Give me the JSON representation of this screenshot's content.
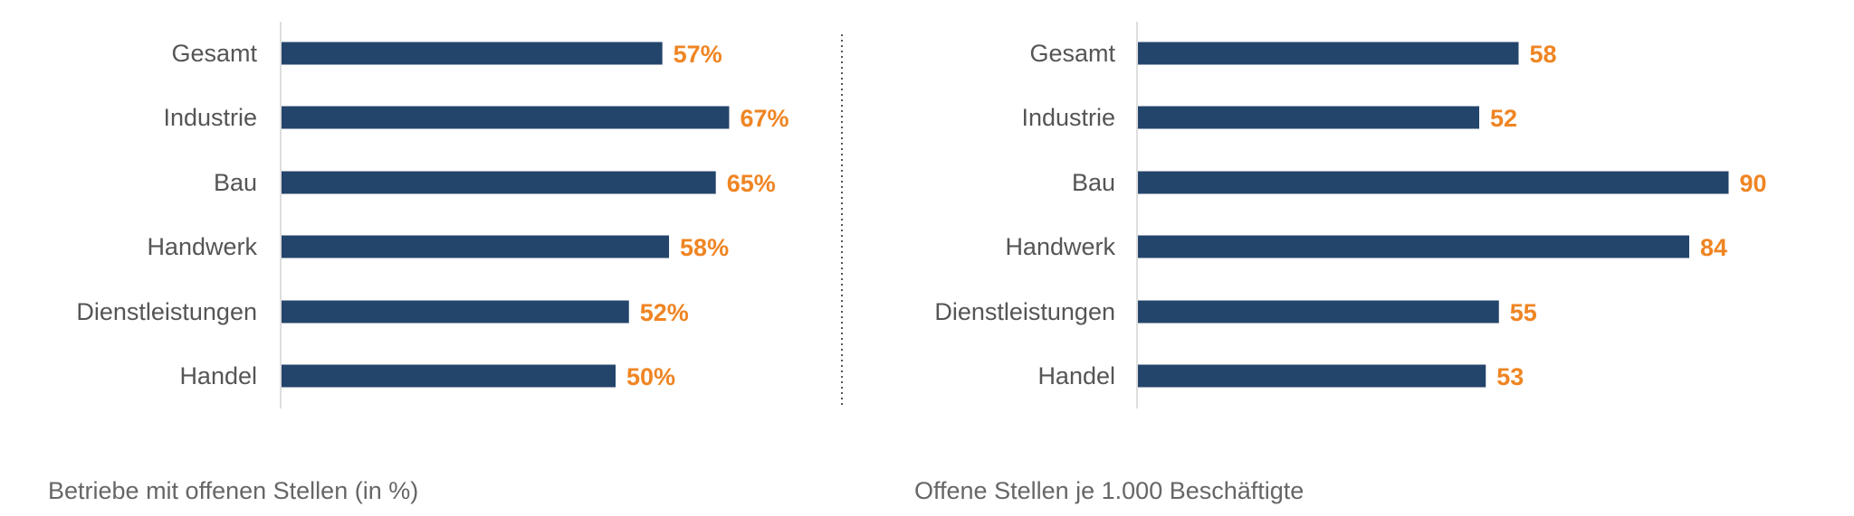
{
  "colors": {
    "bar": "#24456b",
    "value_label": "#ef8523",
    "axis": "#d4d4d4",
    "divider": "#555555"
  },
  "chart_data": [
    {
      "type": "bar",
      "orientation": "horizontal",
      "title": "Betriebe mit offenen Stellen (in %)",
      "categories": [
        "Gesamt",
        "Industrie",
        "Bau",
        "Handwerk",
        "Dienstleistungen",
        "Handel"
      ],
      "values": [
        57,
        67,
        65,
        58,
        52,
        50
      ],
      "value_labels": [
        "57%",
        "67%",
        "65%",
        "58%",
        "52%",
        "50%"
      ],
      "unit": "%",
      "xlim": [
        0,
        100
      ],
      "grid": false,
      "legend": "none"
    },
    {
      "type": "bar",
      "orientation": "horizontal",
      "title": "Offene Stellen je 1.000 Beschäftigte",
      "categories": [
        "Gesamt",
        "Industrie",
        "Bau",
        "Handwerk",
        "Dienstleistungen",
        "Handel"
      ],
      "values": [
        58,
        52,
        90,
        84,
        55,
        53
      ],
      "value_labels": [
        "58",
        "52",
        "90",
        "84",
        "55",
        "53"
      ],
      "unit": "",
      "xlim": [
        0,
        100
      ],
      "grid": false,
      "legend": "none"
    }
  ]
}
